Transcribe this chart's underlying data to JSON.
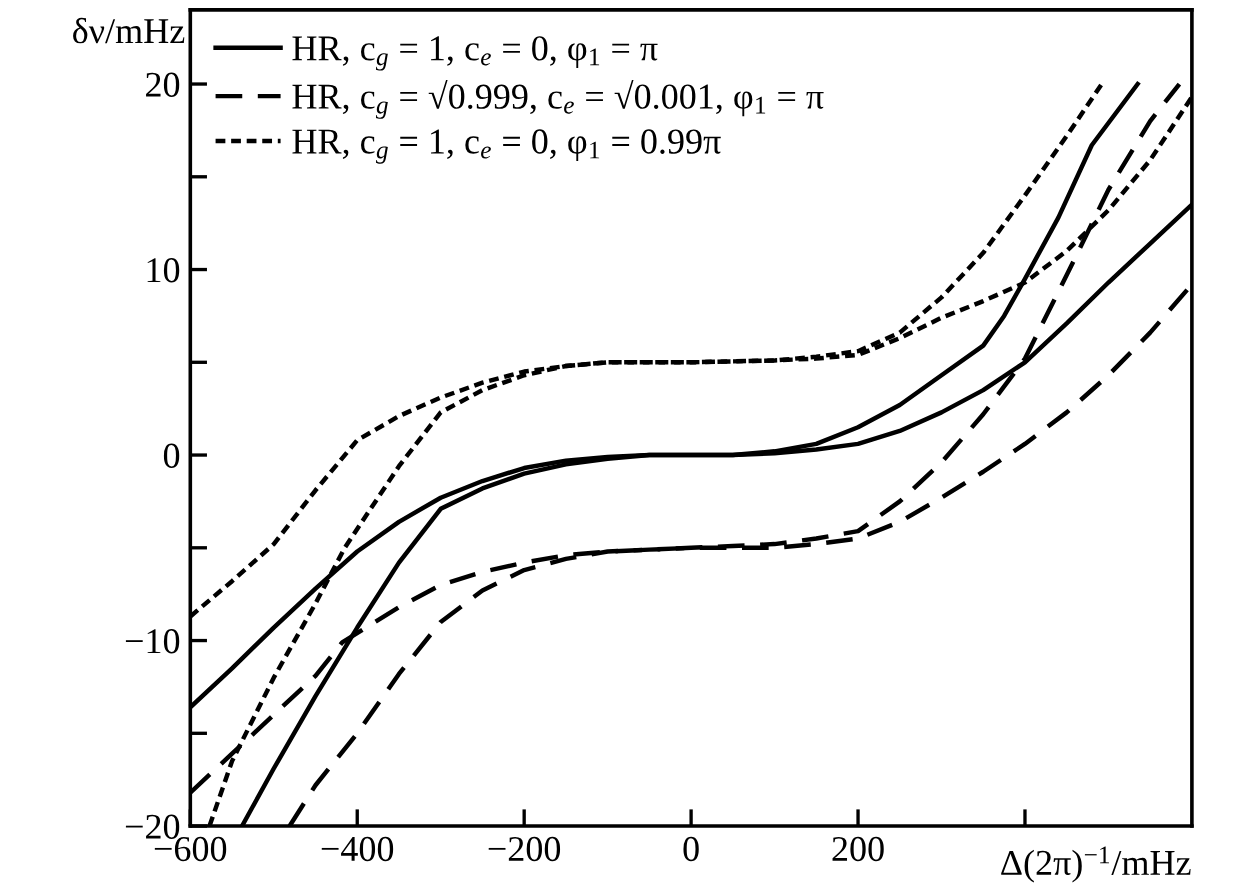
{
  "chart_data": {
    "type": "line",
    "xlabel": "Δ(2π)$^{−1}$/mHz",
    "ylabel": "δν/mHz",
    "xlim": [
      -600,
      600
    ],
    "xticks": [
      -600,
      -400,
      -200,
      0,
      200,
      {
        "value": 400,
        "label": null
      }
    ],
    "ylim": [
      -20,
      24
    ],
    "yticks": [
      -20,
      {
        "value": -15,
        "label": null
      },
      -10,
      {
        "value": -5,
        "label": null
      },
      0,
      {
        "value": 5,
        "label": null
      },
      10,
      {
        "value": 15,
        "label": null
      },
      20
    ],
    "grid": false,
    "legend": "top left",
    "marker": "none",
    "series": [
      {
        "name": "HR, c$_{g}$ = 1, c$_{e}$ = 0, φ$_{1}$ = π",
        "color": "#000000",
        "line_style": "solid",
        "x": [
          -600,
          -550,
          -500,
          -450,
          -400,
          -350,
          -300,
          -250,
          -200,
          -150,
          -100,
          -50,
          0,
          50,
          100,
          150,
          200,
          250,
          300,
          350,
          400,
          450,
          500,
          550,
          600
        ],
        "values": [
          -13.6,
          -11.5,
          -9.3,
          -7.2,
          -5.2,
          -3.6,
          -2.3,
          -1.4,
          -0.7,
          -0.3,
          -0.1,
          0,
          0,
          0,
          0.1,
          0.3,
          0.6,
          1.3,
          2.3,
          3.5,
          5.0,
          7.1,
          9.3,
          11.4,
          13.5
        ]
      },
      {
        "color": "#000000",
        "line_style": "solid",
        "x": [
          -538,
          -500,
          -450,
          -400,
          -350,
          -300,
          -250,
          -200,
          -150,
          -100,
          -50,
          0,
          50,
          100,
          150,
          200,
          250,
          300,
          350,
          375,
          400,
          440,
          480,
          535
        ],
        "values": [
          -20,
          -16.9,
          -13.0,
          -9.3,
          -5.8,
          -2.9,
          -1.8,
          -1.0,
          -0.5,
          -0.2,
          0,
          0,
          0,
          0.2,
          0.6,
          1.5,
          2.7,
          4.3,
          5.9,
          7.5,
          9.5,
          12.8,
          16.7,
          20
        ]
      },
      {
        "name": "HR, c$_{g}$ = √0.999, c$_{e}$ = √0.001, φ$_{1}$ = π",
        "color": "#000000",
        "line_style": "dashed",
        "x": [
          -600,
          -550,
          -500,
          -450,
          -418,
          -350,
          -300,
          -250,
          -200,
          -150,
          -100,
          -50,
          0,
          50,
          100,
          150,
          200,
          250,
          300,
          350,
          400,
          450,
          500,
          550,
          600
        ],
        "values": [
          -18.2,
          -16.1,
          -14.0,
          -11.9,
          -10.1,
          -8.2,
          -7.0,
          -6.3,
          -5.8,
          -5.4,
          -5.2,
          -5.1,
          -5,
          -5,
          -5.0,
          -4.8,
          -4.5,
          -3.6,
          -2.3,
          -0.9,
          0.6,
          2.3,
          4.3,
          6.6,
          9.2
        ]
      },
      {
        "color": "#000000",
        "line_style": "dashed",
        "x": [
          -481,
          -450,
          -400,
          -350,
          -300,
          -250,
          -200,
          -150,
          -100,
          -50,
          0,
          50,
          100,
          150,
          200,
          250,
          300,
          350,
          400,
          450,
          500,
          550,
          585
        ],
        "values": [
          -20,
          -17.8,
          -15,
          -11.8,
          -9,
          -7.3,
          -6.2,
          -5.6,
          -5.2,
          -5.1,
          -5,
          -4.9,
          -4.8,
          -4.5,
          -4.1,
          -2.5,
          -0.4,
          2.2,
          5.2,
          9.7,
          14.3,
          18,
          20
        ]
      },
      {
        "name": "HR, c$_{g}$ = 1, c$_{e}$ = 0, φ$_{1}$ = 0.99π",
        "color": "#000000",
        "line_style": "dotted",
        "x": [
          -600,
          -550,
          -500,
          -450,
          -400,
          -350,
          -300,
          -250,
          -200,
          -150,
          -100,
          0,
          100,
          150,
          200,
          250,
          300,
          350,
          400,
          450,
          500,
          550,
          600
        ],
        "values": [
          -8.7,
          -6.8,
          -4.8,
          -1.9,
          0.8,
          2.1,
          3.1,
          3.9,
          4.5,
          4.8,
          5.0,
          5,
          5.1,
          5.2,
          5.4,
          6.3,
          7.4,
          8.3,
          9.3,
          11.0,
          13.2,
          15.9,
          19.3
        ]
      },
      {
        "color": "#000000",
        "line_style": "dotted",
        "x": [
          -577,
          -550,
          -500,
          -450,
          -415,
          -350,
          -300,
          -250,
          -200,
          -150,
          -100,
          0,
          100,
          150,
          200,
          250,
          300,
          350,
          400,
          450,
          492
        ],
        "values": [
          -20,
          -16.5,
          -12,
          -8,
          -5,
          -0.6,
          2.3,
          3.5,
          4.3,
          4.8,
          5.0,
          5,
          5.1,
          5.3,
          5.6,
          6.6,
          8.5,
          10.9,
          14,
          17.2,
          20
        ]
      }
    ]
  }
}
